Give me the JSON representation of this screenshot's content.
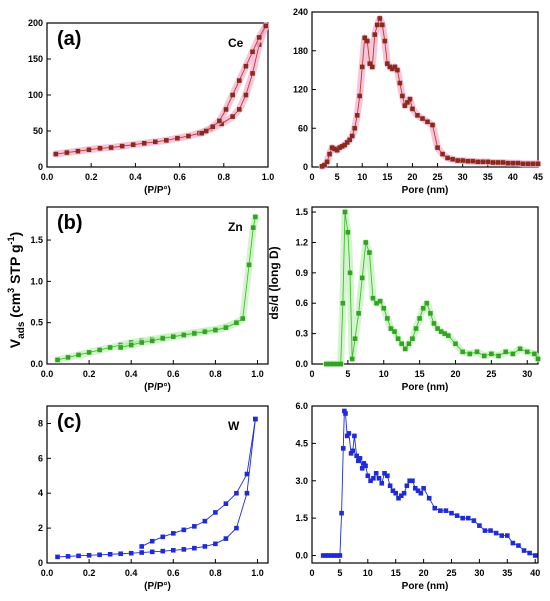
{
  "shared": {
    "ylabel_main": "V",
    "ylabel_sub": "ads",
    "ylabel_units_a": " (cm",
    "ylabel_units_sup": "3",
    "ylabel_units_b": " STP g",
    "ylabel_units_sup2": "-1",
    "ylabel_units_c": ")",
    "ylabel_right_mid": "ds/d (long D)"
  },
  "chart_data": [
    {
      "id": "ce-iso",
      "type": "line",
      "panel_label": "(a)",
      "sample_label": "Ce",
      "xlabel": "(P/P°)",
      "xlim": [
        0,
        1
      ],
      "ylim": [
        0,
        200
      ],
      "xticks": [
        0.0,
        0.2,
        0.4,
        0.6,
        0.8,
        1.0
      ],
      "xtick_labels": [
        "0.0",
        "0.2",
        "0.4",
        "0.6",
        "0.8",
        "1.0"
      ],
      "yticks": [
        0,
        50,
        100,
        150,
        200
      ],
      "ytick_labels": [
        "0",
        "50",
        "100",
        "150",
        "200"
      ],
      "color": "#c0392b",
      "mark_color": "#8a2a1f",
      "halo_color": "#f4b6d2",
      "series": [
        {
          "x": [
            0.04,
            0.09,
            0.14,
            0.19,
            0.24,
            0.29,
            0.34,
            0.39,
            0.44,
            0.49,
            0.54,
            0.59,
            0.64,
            0.69,
            0.74,
            0.79,
            0.84,
            0.87,
            0.9,
            0.93,
            0.96,
            0.99
          ],
          "y": [
            18,
            20,
            22,
            24,
            26,
            27,
            29,
            31,
            33,
            35,
            37,
            40,
            43,
            47,
            53,
            60,
            70,
            80,
            100,
            130,
            170,
            196
          ]
        },
        {
          "x": [
            0.99,
            0.96,
            0.93,
            0.9,
            0.87,
            0.84,
            0.81,
            0.78,
            0.75,
            0.72,
            0.7
          ],
          "y": [
            196,
            180,
            160,
            140,
            120,
            100,
            80,
            64,
            56,
            50,
            47
          ]
        }
      ]
    },
    {
      "id": "ce-pore",
      "type": "line",
      "xlabel": "Pore (nm)",
      "xlim": [
        0,
        45
      ],
      "ylim": [
        0,
        240
      ],
      "xticks": [
        0,
        5,
        10,
        15,
        20,
        25,
        30,
        35,
        40,
        45
      ],
      "xtick_labels": [
        "0",
        "5",
        "10",
        "15",
        "20",
        "25",
        "30",
        "35",
        "40",
        "45"
      ],
      "yticks": [
        0,
        60,
        120,
        180,
        240
      ],
      "ytick_labels": [
        "0",
        "60",
        "120",
        "180",
        "240"
      ],
      "color": "#c0392b",
      "mark_color": "#8a2a1f",
      "halo_color": "#f4b6d2",
      "series": [
        {
          "x": [
            2,
            2.5,
            3,
            3.5,
            4,
            4.5,
            5,
            5.5,
            6,
            6.5,
            7,
            7.5,
            8,
            8.5,
            9,
            9.5,
            10,
            10.5,
            11,
            11.5,
            12,
            12.5,
            13,
            13.5,
            14,
            14.5,
            15,
            15.5,
            16,
            16.5,
            17,
            17.5,
            18,
            18.5,
            19,
            19.5,
            20,
            21,
            22,
            23,
            24,
            25,
            26,
            27,
            28,
            29,
            30,
            31,
            32,
            33,
            34,
            35,
            36,
            37,
            38,
            39,
            40,
            41,
            42,
            43,
            44,
            45
          ],
          "y": [
            1,
            3,
            8,
            20,
            30,
            28,
            26,
            30,
            32,
            34,
            38,
            42,
            48,
            60,
            80,
            110,
            155,
            200,
            195,
            160,
            155,
            205,
            220,
            230,
            220,
            195,
            160,
            155,
            152,
            155,
            150,
            130,
            110,
            95,
            100,
            105,
            90,
            80,
            75,
            70,
            65,
            30,
            20,
            14,
            12,
            10,
            10,
            9,
            9,
            8,
            8,
            8,
            7,
            7,
            7,
            6,
            6,
            6,
            5,
            5,
            5,
            5
          ]
        }
      ]
    },
    {
      "id": "zn-iso",
      "type": "line",
      "panel_label": "(b)",
      "sample_label": "Zn",
      "xlabel": "(P/P°)",
      "xlim": [
        0,
        1.05
      ],
      "ylim": [
        0,
        1.9
      ],
      "xticks": [
        0.0,
        0.2,
        0.4,
        0.6,
        0.8,
        1.0
      ],
      "xtick_labels": [
        "0.0",
        "0.2",
        "0.4",
        "0.6",
        "0.8",
        "1.0"
      ],
      "yticks": [
        0.0,
        0.5,
        1.0,
        1.5
      ],
      "ytick_labels": [
        "0.0",
        "0.5",
        "1.0",
        "1.5"
      ],
      "color": "#3fbf2a",
      "mark_color": "#34a325",
      "halo_color": "#c8f2c0",
      "series": [
        {
          "x": [
            0.05,
            0.1,
            0.15,
            0.2,
            0.25,
            0.3,
            0.35,
            0.4,
            0.45,
            0.5,
            0.55,
            0.6,
            0.65,
            0.7,
            0.75,
            0.8,
            0.85,
            0.9,
            0.93,
            0.96,
            0.98,
            0.99
          ],
          "y": [
            0.05,
            0.08,
            0.11,
            0.14,
            0.17,
            0.2,
            0.23,
            0.26,
            0.28,
            0.3,
            0.32,
            0.34,
            0.36,
            0.38,
            0.4,
            0.42,
            0.45,
            0.5,
            0.55,
            1.2,
            1.65,
            1.78
          ]
        },
        {
          "x": [
            0.35,
            0.4,
            0.45,
            0.5,
            0.55,
            0.6,
            0.65,
            0.7,
            0.75,
            0.8,
            0.85,
            0.9
          ],
          "y": [
            0.2,
            0.23,
            0.26,
            0.28,
            0.31,
            0.33,
            0.35,
            0.37,
            0.39,
            0.41,
            0.44,
            0.5
          ]
        }
      ]
    },
    {
      "id": "zn-pore",
      "type": "line",
      "xlabel": "Pore (nm)",
      "xlim": [
        0,
        31.5
      ],
      "ylim": [
        0,
        1.55
      ],
      "xticks": [
        0,
        5,
        10,
        15,
        20,
        25,
        30
      ],
      "xtick_labels": [
        "0",
        "5",
        "10",
        "15",
        "20",
        "25",
        "30"
      ],
      "yticks": [
        0.0,
        0.3,
        0.6,
        0.9,
        1.2,
        1.5
      ],
      "ytick_labels": [
        "0.0",
        "0.3",
        "0.6",
        "0.9",
        "1.2",
        "1.5"
      ],
      "color": "#3fbf2a",
      "mark_color": "#34a325",
      "halo_color": "#c8f2c0",
      "series": [
        {
          "x": [
            2,
            2.5,
            3,
            3.5,
            4,
            4.3,
            4.6,
            5,
            5.3,
            5.6,
            6,
            6.5,
            7,
            7.5,
            8,
            8.5,
            9,
            9.5,
            10,
            10.5,
            11,
            11.5,
            12,
            12.5,
            13,
            13.5,
            14,
            14.5,
            15,
            15.5,
            16,
            16.5,
            17,
            17.5,
            18,
            18.5,
            19,
            20,
            21,
            22,
            23,
            24,
            25,
            26,
            27,
            28,
            29,
            30,
            31,
            31.5
          ],
          "y": [
            0,
            0,
            0,
            0,
            0,
            0.6,
            1.5,
            1.3,
            0.9,
            0.05,
            0.25,
            0.5,
            0.85,
            1.2,
            1.1,
            0.65,
            0.6,
            0.62,
            0.55,
            0.45,
            0.35,
            0.32,
            0.25,
            0.2,
            0.15,
            0.2,
            0.25,
            0.35,
            0.45,
            0.55,
            0.6,
            0.5,
            0.4,
            0.35,
            0.32,
            0.3,
            0.28,
            0.2,
            0.12,
            0.1,
            0.12,
            0.08,
            0.1,
            0.08,
            0.12,
            0.1,
            0.15,
            0.12,
            0.1,
            0.05
          ]
        }
      ]
    },
    {
      "id": "w-iso",
      "type": "line",
      "panel_label": "(c)",
      "sample_label": "W",
      "xlabel": "(P/P°)",
      "xlim": [
        0,
        1.05
      ],
      "ylim": [
        0,
        9
      ],
      "xticks": [
        0.0,
        0.2,
        0.4,
        0.6,
        0.8,
        1.0
      ],
      "xtick_labels": [
        "0.0",
        "0.2",
        "0.4",
        "0.6",
        "0.8",
        "1.0"
      ],
      "yticks": [
        0,
        2,
        4,
        6,
        8
      ],
      "ytick_labels": [
        "0",
        "2",
        "4",
        "6",
        "8"
      ],
      "color": "#1f2bd6",
      "mark_color": "#1f2bd6",
      "halo_color": "",
      "series": [
        {
          "x": [
            0.05,
            0.1,
            0.15,
            0.2,
            0.25,
            0.3,
            0.35,
            0.4,
            0.45,
            0.5,
            0.55,
            0.6,
            0.65,
            0.7,
            0.75,
            0.8,
            0.85,
            0.9,
            0.95,
            0.99
          ],
          "y": [
            0.35,
            0.38,
            0.41,
            0.44,
            0.47,
            0.5,
            0.53,
            0.56,
            0.6,
            0.64,
            0.68,
            0.73,
            0.78,
            0.85,
            0.95,
            1.1,
            1.4,
            2.0,
            4.0,
            8.25
          ]
        },
        {
          "x": [
            0.99,
            0.95,
            0.9,
            0.85,
            0.8,
            0.75,
            0.7,
            0.65,
            0.6,
            0.55,
            0.5,
            0.45
          ],
          "y": [
            8.25,
            5.1,
            4.0,
            3.4,
            2.9,
            2.4,
            2.1,
            1.9,
            1.7,
            1.5,
            1.25,
            0.95
          ]
        }
      ]
    },
    {
      "id": "w-pore",
      "type": "line",
      "xlabel": "Pore (nm)",
      "xlim": [
        0,
        40.5
      ],
      "ylim": [
        -0.3,
        6.0
      ],
      "xticks": [
        0,
        5,
        10,
        15,
        20,
        25,
        30,
        35,
        40
      ],
      "xtick_labels": [
        "0",
        "5",
        "10",
        "15",
        "20",
        "25",
        "30",
        "35",
        "40"
      ],
      "yticks": [
        0.0,
        1.5,
        3.0,
        4.5,
        6.0
      ],
      "ytick_labels": [
        "0.0",
        "1.5",
        "3.0",
        "4.5",
        "6.0"
      ],
      "color": "#1f2bd6",
      "mark_color": "#1f2bd6",
      "halo_color": "",
      "series": [
        {
          "x": [
            2,
            2.5,
            3,
            3.5,
            4,
            4.5,
            5,
            5.3,
            5.6,
            5.8,
            6,
            6.3,
            6.6,
            7,
            7.3,
            7.6,
            8,
            8.3,
            8.6,
            9,
            9.3,
            9.6,
            10,
            10.5,
            11,
            11.5,
            12,
            12.5,
            13,
            13.5,
            14,
            14.5,
            15,
            15.5,
            16,
            16.5,
            17,
            17.5,
            18,
            18.5,
            19,
            19.5,
            20,
            21,
            22,
            23,
            24,
            25,
            26,
            27,
            28,
            29,
            30,
            31,
            32,
            33,
            34,
            35,
            36,
            37,
            38,
            39,
            40
          ],
          "y": [
            0,
            0,
            0,
            0,
            0,
            0,
            0,
            1.7,
            4.3,
            5.8,
            5.7,
            4.8,
            4.9,
            4.1,
            4.2,
            4.8,
            4.0,
            3.8,
            3.9,
            3.5,
            3.7,
            3.6,
            3.2,
            3.0,
            3.1,
            3.3,
            3.1,
            2.9,
            3.3,
            3.2,
            2.8,
            2.6,
            2.5,
            2.3,
            2.4,
            2.5,
            2.8,
            3.0,
            3.0,
            2.7,
            2.6,
            2.5,
            2.7,
            2.3,
            1.9,
            1.8,
            1.8,
            1.7,
            1.6,
            1.5,
            1.5,
            1.4,
            1.2,
            1.0,
            1.0,
            0.9,
            0.8,
            0.8,
            0.5,
            0.4,
            0.2,
            0.1,
            0.0
          ]
        }
      ]
    }
  ]
}
